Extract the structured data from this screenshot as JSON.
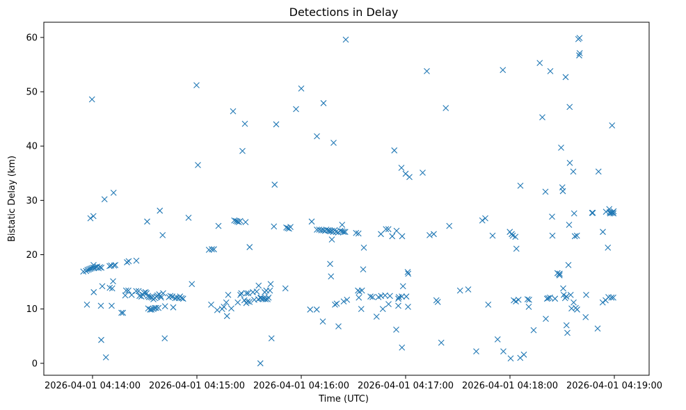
{
  "chart_data": {
    "type": "scatter",
    "title": "Detections in Delay",
    "xlabel": "Time (UTC)",
    "ylabel": "Bistatic Delay (km)",
    "x_unit": "seconds after 2026-04-01 04:14:00 UTC",
    "xlim": [
      -28,
      320
    ],
    "ylim": [
      -2.2,
      62.8
    ],
    "marker": "x",
    "color": "#1f77b4",
    "x_ticks": [
      {
        "value": 0,
        "label": "2026-04-01 04:14:00"
      },
      {
        "value": 60,
        "label": "2026-04-01 04:15:00"
      },
      {
        "value": 120,
        "label": "2026-04-01 04:16:00"
      },
      {
        "value": 180,
        "label": "2026-04-01 04:17:00"
      },
      {
        "value": 240,
        "label": "2026-04-01 04:18:00"
      },
      {
        "value": 300,
        "label": "2026-04-01 04:19:00"
      }
    ],
    "y_ticks": [
      {
        "value": 0,
        "label": "0"
      },
      {
        "value": 10,
        "label": "10"
      },
      {
        "value": 20,
        "label": "20"
      },
      {
        "value": 30,
        "label": "30"
      },
      {
        "value": 40,
        "label": "40"
      },
      {
        "value": 50,
        "label": "50"
      },
      {
        "value": 60,
        "label": "60"
      }
    ],
    "points": [
      [
        -5.3,
        16.9
      ],
      [
        -3.7,
        17.0
      ],
      [
        -2.9,
        17.2
      ],
      [
        -2.1,
        17.3
      ],
      [
        -1.3,
        17.4
      ],
      [
        -0.5,
        17.5
      ],
      [
        0.3,
        17.6
      ],
      [
        1.1,
        17.6
      ],
      [
        1.9,
        17.7
      ],
      [
        2.7,
        17.8
      ],
      [
        3.5,
        17.5
      ],
      [
        4.3,
        17.7
      ],
      [
        5.1,
        17.6
      ],
      [
        0.6,
        18.1
      ],
      [
        -1.2,
        26.7
      ],
      [
        0.5,
        27.1
      ],
      [
        -0.3,
        48.6
      ],
      [
        -3.2,
        10.8
      ],
      [
        0.7,
        13.1
      ],
      [
        4.8,
        10.6
      ],
      [
        5.6,
        14.2
      ],
      [
        6.9,
        30.2
      ],
      [
        5.0,
        4.3
      ],
      [
        7.7,
        1.1
      ],
      [
        9.9,
        13.9
      ],
      [
        11.3,
        13.8
      ],
      [
        11.8,
        15.1
      ],
      [
        11.0,
        10.6
      ],
      [
        12.1,
        31.4
      ],
      [
        9.8,
        17.9
      ],
      [
        10.7,
        18.0
      ],
      [
        12.4,
        18.0
      ],
      [
        13.1,
        18.1
      ],
      [
        16.6,
        9.3
      ],
      [
        17.5,
        9.3
      ],
      [
        18.8,
        12.5
      ],
      [
        19.3,
        13.4
      ],
      [
        20.6,
        13.4
      ],
      [
        22.5,
        12.6
      ],
      [
        19.8,
        18.6
      ],
      [
        20.8,
        18.8
      ],
      [
        25.2,
        18.9
      ],
      [
        25.1,
        13.3
      ],
      [
        26.5,
        13.3
      ],
      [
        27.0,
        12.4
      ],
      [
        28.1,
        12.3
      ],
      [
        29.0,
        12.6
      ],
      [
        29.6,
        13.0
      ],
      [
        30.5,
        13.1
      ],
      [
        31.1,
        12.9
      ],
      [
        31.9,
        12.4
      ],
      [
        32.4,
        12.2
      ],
      [
        33.4,
        12.2
      ],
      [
        34.2,
        12.1
      ],
      [
        35.0,
        11.8
      ],
      [
        35.9,
        12.0
      ],
      [
        36.8,
        12.3
      ],
      [
        37.3,
        12.5
      ],
      [
        38.3,
        12.7
      ],
      [
        39.4,
        12.1
      ],
      [
        32.0,
        10.1
      ],
      [
        33.1,
        9.9
      ],
      [
        33.9,
        9.9
      ],
      [
        35.0,
        10.0
      ],
      [
        35.8,
        10.2
      ],
      [
        36.6,
        10.2
      ],
      [
        37.9,
        10.2
      ],
      [
        39.1,
        12.4
      ],
      [
        40.6,
        12.9
      ],
      [
        41.7,
        10.5
      ],
      [
        43.9,
        12.2
      ],
      [
        44.8,
        12.4
      ],
      [
        45.9,
        12.3
      ],
      [
        46.4,
        10.3
      ],
      [
        47.5,
        12.0
      ],
      [
        48.5,
        12.1
      ],
      [
        49.6,
        12.0
      ],
      [
        50.3,
        12.3
      ],
      [
        51.2,
        12.0
      ],
      [
        52.1,
        11.9
      ],
      [
        31.4,
        26.1
      ],
      [
        38.7,
        28.1
      ],
      [
        40.3,
        23.6
      ],
      [
        41.5,
        4.6
      ],
      [
        55.2,
        26.8
      ],
      [
        57.1,
        14.6
      ],
      [
        59.8,
        51.2
      ],
      [
        60.6,
        36.5
      ],
      [
        66.9,
        20.9
      ],
      [
        68.6,
        21.0
      ],
      [
        69.8,
        21.0
      ],
      [
        68.2,
        10.8
      ],
      [
        72.4,
        25.3
      ],
      [
        71.7,
        9.8
      ],
      [
        74.5,
        10.0
      ],
      [
        75.5,
        10.4
      ],
      [
        76.9,
        11.2
      ],
      [
        77.3,
        8.7
      ],
      [
        78.0,
        12.6
      ],
      [
        79.8,
        10.1
      ],
      [
        83.5,
        11.2
      ],
      [
        85.0,
        12.6
      ],
      [
        85.5,
        12.9
      ],
      [
        87.3,
        11.6
      ],
      [
        88.4,
        11.1
      ],
      [
        88.5,
        12.9
      ],
      [
        89.2,
        11.4
      ],
      [
        89.5,
        12.9
      ],
      [
        90.3,
        11.3
      ],
      [
        92.2,
        13.1
      ],
      [
        93.0,
        11.7
      ],
      [
        94.4,
        13.2
      ],
      [
        95.3,
        11.8
      ],
      [
        96.6,
        12.0
      ],
      [
        97.5,
        11.9
      ],
      [
        98.5,
        11.9
      ],
      [
        99.0,
        13.1
      ],
      [
        99.5,
        11.8
      ],
      [
        99.9,
        13.4
      ],
      [
        100.6,
        11.8
      ],
      [
        101.2,
        12.1
      ],
      [
        102.0,
        13.4
      ],
      [
        102.4,
        14.6
      ],
      [
        81.5,
        26.3
      ],
      [
        82.5,
        26.2
      ],
      [
        83.3,
        26.1
      ],
      [
        84.1,
        26.0
      ],
      [
        84.9,
        26.2
      ],
      [
        88.0,
        26.0
      ],
      [
        90.3,
        21.4
      ],
      [
        80.8,
        46.4
      ],
      [
        86.2,
        39.1
      ],
      [
        87.6,
        44.1
      ],
      [
        102.9,
        4.6
      ],
      [
        95.5,
        14.3
      ],
      [
        96.8,
        12.1
      ],
      [
        104.3,
        25.2
      ],
      [
        104.7,
        32.9
      ],
      [
        105.6,
        44.0
      ],
      [
        110.9,
        13.8
      ],
      [
        111.4,
        25.0
      ],
      [
        112.2,
        24.9
      ],
      [
        113.0,
        24.8
      ],
      [
        113.8,
        25.1
      ],
      [
        117.0,
        46.8
      ],
      [
        96.5,
        0.0
      ],
      [
        120.0,
        50.6
      ],
      [
        125.1,
        9.9
      ],
      [
        126.0,
        26.1
      ],
      [
        129.0,
        24.6
      ],
      [
        130.3,
        24.6
      ],
      [
        131.5,
        24.5
      ],
      [
        132.6,
        24.5
      ],
      [
        133.6,
        24.4
      ],
      [
        134.4,
        24.6
      ],
      [
        135.5,
        24.5
      ],
      [
        136.1,
        24.4
      ],
      [
        136.8,
        24.3
      ],
      [
        137.7,
        24.4
      ],
      [
        138.3,
        24.2
      ],
      [
        139.2,
        24.5
      ],
      [
        140.0,
        24.2
      ],
      [
        141.2,
        24.1
      ],
      [
        142.5,
        24.4
      ],
      [
        143.5,
        24.3
      ],
      [
        144.4,
        24.2
      ],
      [
        143.5,
        25.5
      ],
      [
        145.3,
        24.2
      ],
      [
        128.9,
        9.9
      ],
      [
        132.4,
        7.7
      ],
      [
        136.6,
        18.3
      ],
      [
        137.1,
        16.0
      ],
      [
        137.6,
        22.8
      ],
      [
        139.4,
        10.8
      ],
      [
        140.4,
        11.0
      ],
      [
        141.4,
        6.8
      ],
      [
        144.4,
        11.4
      ],
      [
        146.3,
        11.7
      ],
      [
        129.0,
        41.8
      ],
      [
        132.8,
        47.9
      ],
      [
        138.6,
        40.6
      ],
      [
        145.6,
        59.6
      ],
      [
        151.5,
        24.0
      ],
      [
        152.9,
        23.9
      ],
      [
        152.6,
        13.4
      ],
      [
        153.4,
        13.2
      ],
      [
        154.9,
        13.4
      ],
      [
        153.1,
        12.1
      ],
      [
        154.5,
        10.0
      ],
      [
        155.6,
        17.3
      ],
      [
        156.0,
        21.3
      ],
      [
        159.8,
        12.3
      ],
      [
        161.0,
        12.2
      ],
      [
        163.3,
        8.6
      ],
      [
        164.4,
        12.2
      ],
      [
        165.8,
        23.8
      ],
      [
        165.9,
        12.4
      ],
      [
        166.9,
        10.0
      ],
      [
        168.2,
        12.5
      ],
      [
        168.7,
        24.7
      ],
      [
        170.1,
        24.7
      ],
      [
        171.0,
        12.4
      ],
      [
        170.2,
        10.9
      ],
      [
        172.3,
        23.4
      ],
      [
        174.8,
        24.4
      ],
      [
        175.8,
        10.6
      ],
      [
        175.8,
        11.9
      ],
      [
        174.6,
        6.2
      ],
      [
        176.1,
        12.2
      ],
      [
        177.8,
        12.3
      ],
      [
        178.0,
        23.4
      ],
      [
        178.5,
        14.2
      ],
      [
        180.4,
        12.3
      ],
      [
        181.4,
        10.4
      ],
      [
        181.2,
        16.8
      ],
      [
        181.5,
        16.5
      ],
      [
        182.2,
        34.3
      ],
      [
        173.5,
        39.2
      ],
      [
        177.6,
        36.0
      ],
      [
        180.0,
        34.9
      ],
      [
        177.9,
        2.9
      ],
      [
        192.2,
        53.8
      ],
      [
        189.8,
        35.1
      ],
      [
        193.8,
        23.6
      ],
      [
        196.2,
        23.8
      ],
      [
        197.7,
        11.6
      ],
      [
        198.5,
        11.3
      ],
      [
        203.1,
        47.0
      ],
      [
        205.1,
        25.3
      ],
      [
        200.5,
        3.8
      ],
      [
        211.3,
        13.4
      ],
      [
        216.0,
        13.6
      ],
      [
        224.1,
        26.3
      ],
      [
        225.8,
        26.7
      ],
      [
        227.5,
        10.8
      ],
      [
        230.0,
        23.5
      ],
      [
        232.9,
        4.4
      ],
      [
        235.9,
        54.0
      ],
      [
        239.9,
        24.2
      ],
      [
        241.6,
        23.5
      ],
      [
        243.1,
        23.3
      ],
      [
        243.7,
        21.1
      ],
      [
        242.2,
        11.6
      ],
      [
        243.4,
        11.4
      ],
      [
        244.9,
        11.7
      ],
      [
        246.0,
        32.7
      ],
      [
        250.1,
        11.8
      ],
      [
        251.0,
        11.7
      ],
      [
        250.8,
        10.4
      ],
      [
        253.6,
        6.1
      ],
      [
        257.1,
        55.3
      ],
      [
        258.6,
        45.3
      ],
      [
        260.4,
        31.6
      ],
      [
        260.6,
        8.2
      ],
      [
        261.3,
        11.9
      ],
      [
        262.0,
        12.0
      ],
      [
        263.0,
        12.1
      ],
      [
        263.2,
        53.8
      ],
      [
        264.2,
        27.0
      ],
      [
        264.4,
        23.5
      ],
      [
        265.9,
        11.9
      ],
      [
        267.3,
        16.6
      ],
      [
        268.1,
        16.4
      ],
      [
        268.5,
        16.2
      ],
      [
        268.6,
        16.5
      ],
      [
        269.4,
        39.7
      ],
      [
        270.1,
        32.4
      ],
      [
        270.4,
        31.7
      ],
      [
        270.6,
        13.8
      ],
      [
        270.9,
        12.6
      ],
      [
        271.7,
        12.0
      ],
      [
        272.4,
        12.3
      ],
      [
        272.0,
        52.7
      ],
      [
        272.5,
        7.0
      ],
      [
        273.0,
        5.6
      ],
      [
        273.6,
        18.1
      ],
      [
        274.0,
        25.5
      ],
      [
        274.3,
        47.2
      ],
      [
        274.4,
        36.9
      ],
      [
        274.9,
        12.6
      ],
      [
        275.4,
        10.1
      ],
      [
        276.6,
        11.2
      ],
      [
        276.4,
        35.3
      ],
      [
        276.9,
        27.6
      ],
      [
        277.3,
        23.4
      ],
      [
        277.8,
        10.2
      ],
      [
        278.5,
        23.5
      ],
      [
        278.6,
        9.9
      ],
      [
        279.3,
        59.7
      ],
      [
        279.8,
        56.7
      ],
      [
        280.1,
        57.1
      ],
      [
        280.0,
        59.9
      ],
      [
        283.5,
        8.5
      ],
      [
        283.8,
        12.6
      ],
      [
        287.2,
        27.7
      ],
      [
        287.6,
        27.7
      ],
      [
        290.4,
        6.4
      ],
      [
        290.9,
        35.3
      ],
      [
        293.4,
        24.2
      ],
      [
        293.3,
        11.2
      ],
      [
        295.0,
        11.6
      ],
      [
        295.2,
        27.9
      ],
      [
        296.3,
        21.3
      ],
      [
        296.6,
        12.2
      ],
      [
        297.1,
        28.4
      ],
      [
        297.4,
        27.8
      ],
      [
        297.6,
        27.6
      ],
      [
        298.3,
        12.1
      ],
      [
        298.4,
        27.7
      ],
      [
        298.7,
        43.8
      ],
      [
        299.2,
        27.8
      ],
      [
        299.4,
        12.1
      ],
      [
        299.5,
        27.6
      ],
      [
        299.6,
        28.0
      ],
      [
        220.6,
        2.2
      ],
      [
        236.2,
        2.2
      ],
      [
        240.4,
        0.9
      ],
      [
        245.9,
        1.0
      ],
      [
        248.0,
        1.6
      ],
      [
        241.0,
        23.8
      ]
    ]
  }
}
